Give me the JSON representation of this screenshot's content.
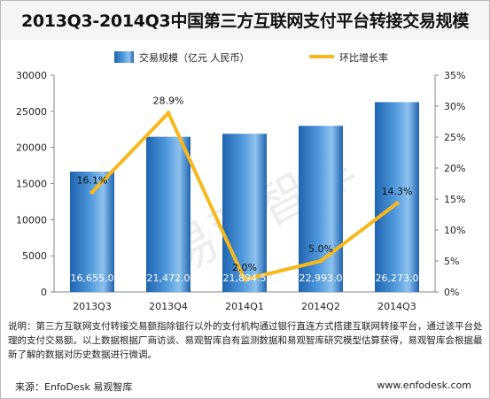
{
  "title": "2013Q3-2014Q3中国第三方互联网支付平台转接交易规模",
  "chart_data": {
    "type": "bar+line",
    "categories": [
      "2013Q3",
      "2013Q4",
      "2014Q1",
      "2014Q2",
      "2014Q3"
    ],
    "series": [
      {
        "name": "交易规模（亿元 人民币）",
        "kind": "bar",
        "axis": "left",
        "values": [
          16655.0,
          21472.0,
          21894.5,
          22993.0,
          26273.0
        ],
        "labels": [
          "16,655.0",
          "21,472.0",
          "21,894.5",
          "22,993.0",
          "26,273.0"
        ],
        "color": "#2a74c2"
      },
      {
        "name": "环比增长率",
        "kind": "line",
        "axis": "right",
        "values": [
          16.1,
          28.9,
          2.0,
          5.0,
          14.3
        ],
        "labels": [
          "16.1%",
          "28.9%",
          "2.0%",
          "5.0%",
          "14.3%"
        ],
        "color": "#f6b81c"
      }
    ],
    "y_left": {
      "range": [
        0,
        30000
      ],
      "ticks": [
        "0",
        "5000",
        "10000",
        "15000",
        "20000",
        "25000",
        "30000"
      ]
    },
    "y_right": {
      "range": [
        0,
        35
      ],
      "ticks": [
        "0%",
        "5%",
        "10%",
        "15%",
        "20%",
        "25%",
        "30%",
        "35%"
      ]
    },
    "legend_position": "top",
    "grid": false
  },
  "watermark": "易观智库",
  "note": "说明：第三方互联网支付转接交易额指除银行以外的支付机构通过银行直连方式搭建互联网转接平台，通过该平台处理的支付交易额。以上数据根据厂商访谈、易观智库自有监测数据和易观智库研究模型估算获得，易观智库会根据最新了解的数据对历史数据进行微调。",
  "source": "来源：EnfoDesk 易观智库",
  "website": "www.enfodesk.com"
}
